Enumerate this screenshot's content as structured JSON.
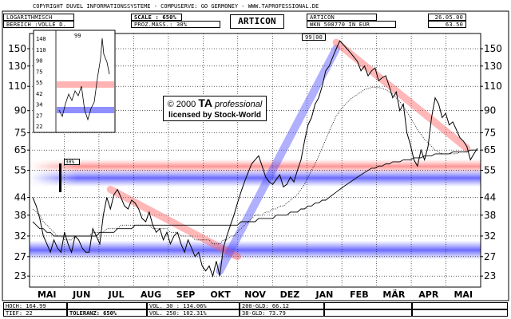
{
  "header": {
    "copyright": "COPYRIGHT   DUVEL INFORMATIONSSYSTEME  -  COMPUSERVE: GO GERMONEY  -  WWW.TAPROFESSIONAL.DE",
    "scale_type": "LOGARITHMISCH",
    "range": "BEREICH :VOLLE D.",
    "scale": "SCALE : 650%",
    "proz_mass": "PROZ.MASS.: 30%",
    "title": "ARTICON",
    "stock_name": "ARTICON",
    "wkn": "WKN 508770   IN EUR",
    "date": "26.05.00",
    "last_price": "63.50",
    "year_label": "99|00"
  },
  "watermark": {
    "year": "© 2000",
    "brand": "TA",
    "brand_suffix": "professional",
    "license": "licensed by Stock-World"
  },
  "pct_marker": "30%",
  "inset": {
    "year": "99",
    "ticks": [
      "140",
      "110",
      "90",
      "75",
      "55",
      "42",
      "34",
      "27",
      "22"
    ]
  },
  "footer": {
    "hoch": "HOCH: 164.99",
    "tief": "TIEF: 22",
    "toleranz": "TOLERANZ: 650%",
    "vol30": "VOL. 30 : 134.06%",
    "vol250": "VOL. 250: 102.31%",
    "gld200": "200-GLD: 66.12",
    "gld38": "38-GLD: 73.79"
  },
  "colors": {
    "resistance": "#ff8080",
    "support": "#6b6bff"
  },
  "chart_data": {
    "type": "line",
    "y_scale": "log",
    "ylim": [
      21,
      170
    ],
    "y_ticks": [
      23,
      27,
      32,
      38,
      44,
      55,
      65,
      75,
      90,
      110,
      130,
      150
    ],
    "x_labels": [
      "MAI",
      "JUN",
      "JUL",
      "AUG",
      "SEP",
      "OKT",
      "NOV",
      "DEZ",
      "JAN",
      "FEB",
      "MÄR",
      "APR",
      "MAI"
    ],
    "series": [
      {
        "name": "",
        "values": [
          44,
          41,
          37,
          32,
          30,
          28,
          31,
          29,
          28,
          33,
          30,
          28,
          32,
          31,
          29,
          28,
          28,
          34,
          32,
          30,
          38,
          44,
          40,
          45,
          47,
          44,
          41,
          40,
          43,
          42,
          40,
          37,
          36,
          39,
          35,
          33,
          34,
          31,
          33,
          30,
          32,
          33,
          30,
          28,
          31,
          29,
          27,
          28,
          25,
          24,
          25,
          23,
          26,
          23,
          29,
          32,
          35,
          38,
          42,
          46,
          50,
          54,
          58,
          60,
          62,
          57,
          52,
          50,
          49,
          51,
          53,
          48,
          49,
          52,
          50,
          55,
          60,
          70,
          80,
          85,
          95,
          100,
          110,
          125,
          130,
          140,
          150,
          160,
          155,
          150,
          145,
          140,
          135,
          125,
          130,
          120,
          125,
          128,
          115,
          118,
          120,
          110,
          100,
          105,
          90,
          95,
          75,
          68,
          60,
          57,
          65,
          60,
          67,
          85,
          100,
          95,
          85,
          88,
          80,
          82,
          77,
          72,
          70,
          67,
          60,
          63,
          66
        ]
      },
      {
        "name": "",
        "values": [
          40,
          39,
          38,
          36,
          35,
          34,
          33,
          32,
          32,
          31,
          31,
          31,
          32,
          32,
          32,
          32,
          32,
          33,
          33,
          33,
          33,
          34,
          34,
          34,
          34,
          35,
          35,
          35,
          35,
          35,
          35,
          35,
          35,
          35,
          34,
          34,
          34,
          34,
          34,
          33,
          33,
          33,
          32,
          32,
          32,
          32,
          31,
          31,
          31,
          31,
          31,
          30,
          30,
          30,
          31,
          31,
          32,
          32,
          33,
          34,
          35,
          36,
          37,
          38,
          38,
          38,
          39,
          39,
          40,
          40,
          41,
          41,
          42,
          43,
          44,
          45,
          47,
          49,
          52,
          55,
          58,
          62,
          66,
          71,
          76,
          81,
          86,
          90,
          93,
          96,
          99,
          101,
          103,
          105,
          107,
          108,
          109,
          109,
          109,
          108,
          107,
          105,
          103,
          100,
          97,
          93,
          89,
          85,
          81,
          77,
          74,
          71,
          69,
          67,
          65,
          64,
          63,
          63,
          63,
          63,
          63,
          64,
          64,
          64,
          65,
          65,
          65
        ]
      },
      {
        "name": "",
        "values": [
          36,
          35,
          34,
          34,
          33,
          33,
          32,
          32,
          32,
          32,
          32,
          32,
          32,
          32,
          32,
          32,
          32,
          32,
          32,
          33,
          33,
          33,
          33,
          33,
          34,
          34,
          34,
          34,
          34,
          35,
          35,
          35,
          35,
          35,
          35,
          35,
          35,
          35,
          35,
          35,
          35,
          35,
          35,
          35,
          35,
          35,
          35,
          35,
          35,
          35,
          35,
          35,
          35,
          35,
          35,
          35,
          35,
          35,
          35,
          36,
          36,
          36,
          36,
          36,
          37,
          37,
          37,
          37,
          37,
          38,
          38,
          38,
          38,
          39,
          39,
          39,
          40,
          40,
          41,
          41,
          42,
          42,
          43,
          43,
          44,
          45,
          46,
          47,
          48,
          49,
          50,
          51,
          52,
          53,
          54,
          55,
          56,
          56,
          57,
          57,
          58,
          58,
          59,
          59,
          59,
          60,
          60,
          60,
          61,
          61,
          61,
          62,
          62,
          62,
          63,
          63,
          63,
          63,
          63,
          64,
          64,
          64,
          64,
          64,
          65,
          65,
          65
        ]
      }
    ]
  }
}
